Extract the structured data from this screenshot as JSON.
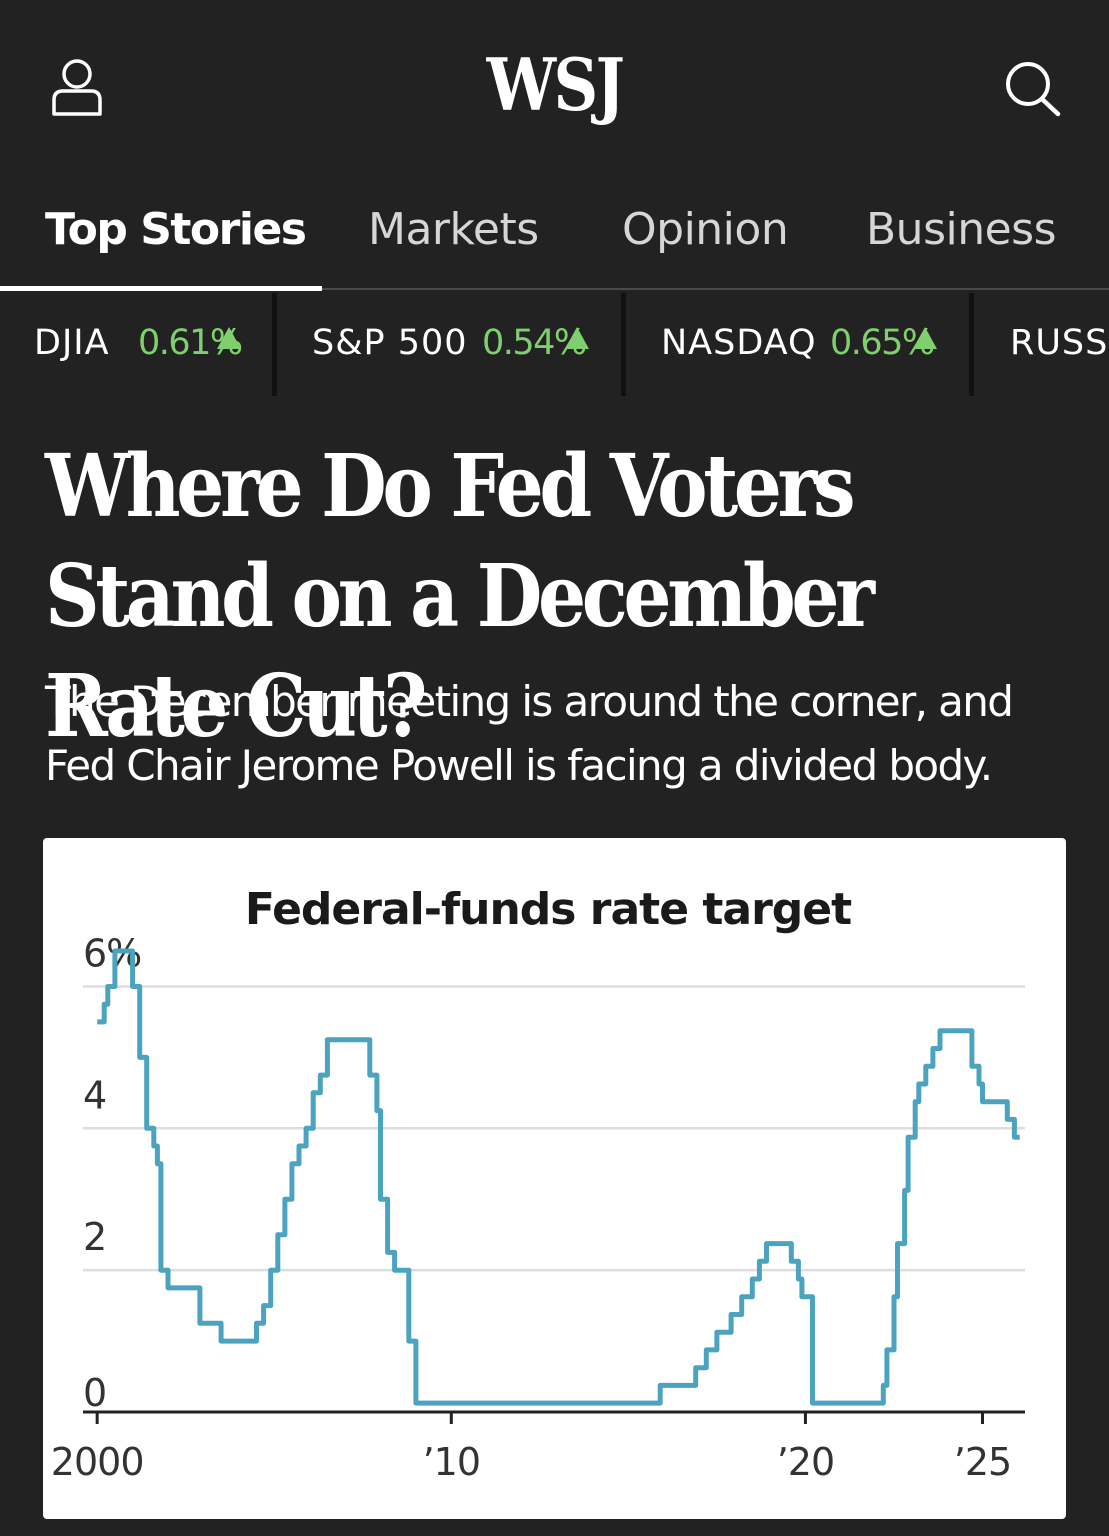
{
  "header": {
    "logo": "WSJ",
    "user_icon": "user-icon",
    "search_icon": "search-icon"
  },
  "tabs": [
    {
      "label": "Top Stories",
      "active": true
    },
    {
      "label": "Markets",
      "active": false
    },
    {
      "label": "Opinion",
      "active": false
    },
    {
      "label": "Business",
      "active": false
    }
  ],
  "tickers": [
    {
      "name": "DJIA",
      "change": "0.61%",
      "direction": "up"
    },
    {
      "name": "S&P 500",
      "change": "0.54%",
      "direction": "up"
    },
    {
      "name": "NASDAQ",
      "change": "0.65%",
      "direction": "up"
    },
    {
      "name": "RUSSELL",
      "change": "",
      "direction": "up"
    }
  ],
  "colors": {
    "background": "#222222",
    "positive": "#7fcf6e",
    "chart_line": "#4ba3bf",
    "grid": "#dddddd"
  },
  "article": {
    "headline": "Where Do Fed Voters Stand on a December Rate Cut?",
    "dek": "The December meeting is around the corner, and Fed Chair Jerome Powell is facing a divided body."
  },
  "chart_data": {
    "type": "line",
    "title": "Federal-funds rate target",
    "xlabel": "",
    "ylabel": "",
    "xlim": [
      1999.6,
      2026.2
    ],
    "ylim": [
      0,
      6.5
    ],
    "x_ticks": [
      2000,
      2010,
      2020,
      2025
    ],
    "x_tick_labels": [
      "2000",
      "’10",
      "’20",
      "’25"
    ],
    "y_ticks": [
      0,
      2,
      4,
      6
    ],
    "y_tick_labels": [
      "0",
      "2",
      "4",
      "6%"
    ],
    "grid": true,
    "series": [
      {
        "name": "",
        "step": true,
        "points": [
          [
            2000.0,
            5.5
          ],
          [
            2000.2,
            5.75
          ],
          [
            2000.3,
            6.0
          ],
          [
            2000.5,
            6.5
          ],
          [
            2001.0,
            6.0
          ],
          [
            2001.2,
            5.0
          ],
          [
            2001.4,
            4.0
          ],
          [
            2001.6,
            3.75
          ],
          [
            2001.7,
            3.5
          ],
          [
            2001.8,
            2.0
          ],
          [
            2002.0,
            1.75
          ],
          [
            2002.9,
            1.25
          ],
          [
            2003.5,
            1.0
          ],
          [
            2004.5,
            1.25
          ],
          [
            2004.7,
            1.5
          ],
          [
            2004.9,
            2.0
          ],
          [
            2005.1,
            2.5
          ],
          [
            2005.3,
            3.0
          ],
          [
            2005.5,
            3.5
          ],
          [
            2005.7,
            3.75
          ],
          [
            2005.9,
            4.0
          ],
          [
            2006.1,
            4.5
          ],
          [
            2006.3,
            4.75
          ],
          [
            2006.5,
            5.25
          ],
          [
            2007.7,
            4.75
          ],
          [
            2007.9,
            4.25
          ],
          [
            2008.0,
            3.0
          ],
          [
            2008.2,
            2.25
          ],
          [
            2008.4,
            2.0
          ],
          [
            2008.8,
            1.0
          ],
          [
            2009.0,
            0.125
          ],
          [
            2015.9,
            0.375
          ],
          [
            2016.9,
            0.625
          ],
          [
            2017.2,
            0.875
          ],
          [
            2017.5,
            1.125
          ],
          [
            2017.9,
            1.375
          ],
          [
            2018.2,
            1.625
          ],
          [
            2018.5,
            1.875
          ],
          [
            2018.7,
            2.125
          ],
          [
            2018.9,
            2.375
          ],
          [
            2019.6,
            2.125
          ],
          [
            2019.8,
            1.875
          ],
          [
            2019.9,
            1.625
          ],
          [
            2020.2,
            0.125
          ],
          [
            2022.2,
            0.375
          ],
          [
            2022.3,
            0.875
          ],
          [
            2022.5,
            1.625
          ],
          [
            2022.6,
            2.375
          ],
          [
            2022.8,
            3.125
          ],
          [
            2022.9,
            3.875
          ],
          [
            2023.1,
            4.375
          ],
          [
            2023.2,
            4.625
          ],
          [
            2023.4,
            4.875
          ],
          [
            2023.6,
            5.125
          ],
          [
            2023.8,
            5.375
          ],
          [
            2024.7,
            4.875
          ],
          [
            2024.9,
            4.625
          ],
          [
            2025.0,
            4.375
          ],
          [
            2025.7,
            4.125
          ],
          [
            2025.9,
            3.875
          ]
        ]
      }
    ]
  }
}
